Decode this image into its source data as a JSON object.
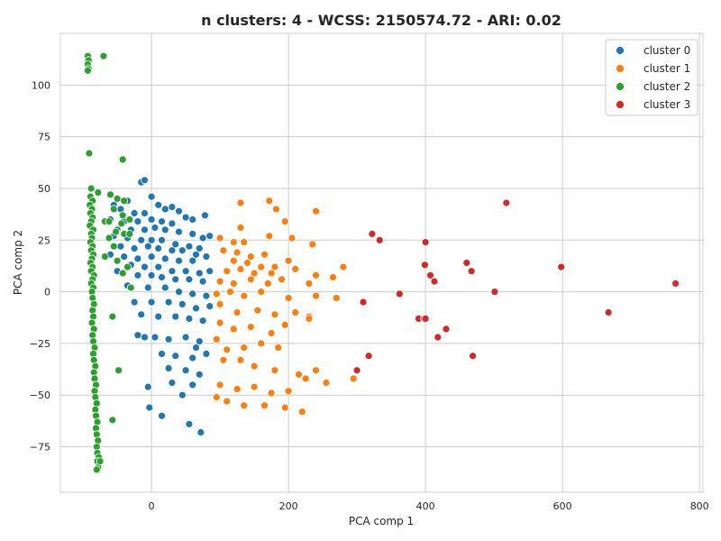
{
  "chart_data": {
    "type": "scatter",
    "title": "n clusters: 4 - WCSS: 2150574.72 - ARI: 0.02",
    "xlabel": "PCA comp 1",
    "ylabel": "PCA comp 2",
    "xlim": [
      -133,
      805
    ],
    "ylim": [
      -97,
      125
    ],
    "xticks": [
      0,
      200,
      400,
      600,
      800
    ],
    "xtick_labels": [
      "0",
      "200",
      "400",
      "600",
      "800"
    ],
    "yticks": [
      -75,
      -50,
      -25,
      0,
      25,
      50,
      75,
      100
    ],
    "ytick_labels": [
      "−75",
      "−50",
      "−25",
      "0",
      "25",
      "50",
      "75",
      "100"
    ],
    "grid": true,
    "legend_position": "top-right",
    "series": [
      {
        "name": "cluster 0",
        "color": "#1f77b4",
        "points": [
          [
            -15,
            53
          ],
          [
            -10,
            54
          ],
          [
            0,
            46
          ],
          [
            -35,
            44
          ],
          [
            -55,
            42
          ],
          [
            -45,
            40
          ],
          [
            -25,
            38
          ],
          [
            -10,
            38
          ],
          [
            10,
            42
          ],
          [
            20,
            40
          ],
          [
            30,
            41
          ],
          [
            40,
            39
          ],
          [
            50,
            36
          ],
          [
            60,
            35
          ],
          [
            78,
            37
          ],
          [
            -60,
            35
          ],
          [
            -40,
            34
          ],
          [
            -20,
            34
          ],
          [
            0,
            35
          ],
          [
            15,
            34
          ],
          [
            30,
            33
          ],
          [
            -50,
            30
          ],
          [
            -30,
            30
          ],
          [
            -10,
            30
          ],
          [
            5,
            31
          ],
          [
            20,
            30
          ],
          [
            40,
            29
          ],
          [
            60,
            28
          ],
          [
            75,
            26
          ],
          [
            85,
            27
          ],
          [
            -55,
            27
          ],
          [
            -35,
            26
          ],
          [
            -15,
            25
          ],
          [
            0,
            25
          ],
          [
            15,
            25
          ],
          [
            35,
            23
          ],
          [
            55,
            22
          ],
          [
            70,
            21
          ],
          [
            -45,
            22
          ],
          [
            -25,
            21
          ],
          [
            -5,
            22
          ],
          [
            10,
            21
          ],
          [
            30,
            20
          ],
          [
            45,
            20
          ],
          [
            65,
            18
          ],
          [
            80,
            17
          ],
          [
            -60,
            18
          ],
          [
            -40,
            17
          ],
          [
            -20,
            16
          ],
          [
            0,
            17
          ],
          [
            20,
            16
          ],
          [
            40,
            15
          ],
          [
            60,
            15
          ],
          [
            -30,
            13
          ],
          [
            -10,
            12
          ],
          [
            10,
            12
          ],
          [
            30,
            10
          ],
          [
            50,
            10
          ],
          [
            70,
            9
          ],
          [
            85,
            10
          ],
          [
            -50,
            10
          ],
          [
            -20,
            8
          ],
          [
            0,
            8
          ],
          [
            15,
            7
          ],
          [
            35,
            6
          ],
          [
            55,
            6
          ],
          [
            75,
            5
          ],
          [
            -35,
            3
          ],
          [
            -5,
            2
          ],
          [
            20,
            2
          ],
          [
            40,
            0
          ],
          [
            60,
            -1
          ],
          [
            80,
            -2
          ],
          [
            -25,
            -5
          ],
          [
            0,
            -5
          ],
          [
            25,
            -5
          ],
          [
            45,
            -6
          ],
          [
            65,
            -8
          ],
          [
            85,
            -7
          ],
          [
            -15,
            -11
          ],
          [
            10,
            -12
          ],
          [
            35,
            -12
          ],
          [
            55,
            -13
          ],
          [
            75,
            -14
          ],
          [
            -20,
            -21
          ],
          [
            5,
            -22
          ],
          [
            25,
            -23
          ],
          [
            50,
            -22
          ],
          [
            70,
            -24
          ],
          [
            15,
            -30
          ],
          [
            35,
            -31
          ],
          [
            60,
            -32
          ],
          [
            80,
            -30
          ],
          [
            25,
            -37
          ],
          [
            50,
            -38
          ],
          [
            70,
            -40
          ],
          [
            -5,
            -46
          ],
          [
            30,
            -44
          ],
          [
            60,
            -45
          ],
          [
            45,
            -50
          ],
          [
            -3,
            -56
          ],
          [
            15,
            -60
          ],
          [
            55,
            -64
          ],
          [
            72,
            -68
          ],
          [
            -10,
            -22
          ],
          [
            65,
            -27
          ]
        ]
      },
      {
        "name": "cluster 1",
        "color": "#ff7f0e",
        "points": [
          [
            130,
            43
          ],
          [
            172,
            44
          ],
          [
            182,
            40
          ],
          [
            240,
            39
          ],
          [
            100,
            26
          ],
          [
            120,
            24
          ],
          [
            130,
            31
          ],
          [
            135,
            24
          ],
          [
            172,
            27
          ],
          [
            195,
            34
          ],
          [
            205,
            26
          ],
          [
            235,
            23
          ],
          [
            105,
            20
          ],
          [
            125,
            19
          ],
          [
            145,
            17
          ],
          [
            165,
            18
          ],
          [
            120,
            15
          ],
          [
            140,
            14
          ],
          [
            160,
            12
          ],
          [
            180,
            12
          ],
          [
            200,
            15
          ],
          [
            110,
            10
          ],
          [
            130,
            11
          ],
          [
            150,
            9
          ],
          [
            175,
            9
          ],
          [
            210,
            11
          ],
          [
            240,
            8
          ],
          [
            280,
            12
          ],
          [
            100,
            5
          ],
          [
            120,
            4
          ],
          [
            145,
            6
          ],
          [
            170,
            4
          ],
          [
            190,
            6
          ],
          [
            230,
            4
          ],
          [
            265,
            7
          ],
          [
            95,
            -1
          ],
          [
            115,
            0
          ],
          [
            135,
            -2
          ],
          [
            160,
            0
          ],
          [
            200,
            -3
          ],
          [
            240,
            -2
          ],
          [
            270,
            -3
          ],
          [
            100,
            -6
          ],
          [
            125,
            -10
          ],
          [
            155,
            -9
          ],
          [
            180,
            -11
          ],
          [
            210,
            -10
          ],
          [
            230,
            -12
          ],
          [
            100,
            -15
          ],
          [
            120,
            -18
          ],
          [
            145,
            -17
          ],
          [
            175,
            -20
          ],
          [
            195,
            -16
          ],
          [
            230,
            -13
          ],
          [
            95,
            -23
          ],
          [
            110,
            -28
          ],
          [
            135,
            -27
          ],
          [
            160,
            -25
          ],
          [
            185,
            -27
          ],
          [
            105,
            -33
          ],
          [
            130,
            -33
          ],
          [
            150,
            -36
          ],
          [
            180,
            -38
          ],
          [
            215,
            -40
          ],
          [
            240,
            -38
          ],
          [
            100,
            -45
          ],
          [
            125,
            -47
          ],
          [
            150,
            -46
          ],
          [
            175,
            -49
          ],
          [
            200,
            -48
          ],
          [
            225,
            -42
          ],
          [
            95,
            -51
          ],
          [
            110,
            -53
          ],
          [
            135,
            -55
          ],
          [
            165,
            -55
          ],
          [
            195,
            -56
          ],
          [
            220,
            -58
          ],
          [
            255,
            -44
          ],
          [
            295,
            -42
          ]
        ]
      },
      {
        "name": "cluster 2",
        "color": "#2ca02c",
        "points": [
          [
            -93,
            114
          ],
          [
            -92,
            112
          ],
          [
            -93,
            110
          ],
          [
            -92,
            108
          ],
          [
            -93,
            107
          ],
          [
            -70,
            114
          ],
          [
            -91,
            67
          ],
          [
            -78,
            48
          ],
          [
            -88,
            50
          ],
          [
            -89,
            46
          ],
          [
            -86,
            44
          ],
          [
            -90,
            42
          ],
          [
            -87,
            40
          ],
          [
            -89,
            38
          ],
          [
            -86,
            36
          ],
          [
            -88,
            34
          ],
          [
            -90,
            32
          ],
          [
            -85,
            30
          ],
          [
            -88,
            28
          ],
          [
            -87,
            26
          ],
          [
            -89,
            24
          ],
          [
            -86,
            22
          ],
          [
            -88,
            20
          ],
          [
            -85,
            18
          ],
          [
            -87,
            16
          ],
          [
            -89,
            14
          ],
          [
            -86,
            12
          ],
          [
            -88,
            10
          ],
          [
            -84,
            8
          ],
          [
            -86,
            6
          ],
          [
            -88,
            4
          ],
          [
            -85,
            2
          ],
          [
            -87,
            0
          ],
          [
            -86,
            -3
          ],
          [
            -84,
            -6
          ],
          [
            -86,
            -9
          ],
          [
            -85,
            -12
          ],
          [
            -87,
            -15
          ],
          [
            -84,
            -18
          ],
          [
            -86,
            -21
          ],
          [
            -85,
            -24
          ],
          [
            -83,
            -27
          ],
          [
            -85,
            -30
          ],
          [
            -84,
            -33
          ],
          [
            -82,
            -36
          ],
          [
            -84,
            -39
          ],
          [
            -83,
            -42
          ],
          [
            -81,
            -45
          ],
          [
            -83,
            -48
          ],
          [
            -82,
            -51
          ],
          [
            -80,
            -54
          ],
          [
            -82,
            -57
          ],
          [
            -81,
            -60
          ],
          [
            -79,
            -63
          ],
          [
            -81,
            -66
          ],
          [
            -80,
            -69
          ],
          [
            -78,
            -72
          ],
          [
            -80,
            -75
          ],
          [
            -79,
            -78
          ],
          [
            -77,
            -80
          ],
          [
            -79,
            -82
          ],
          [
            -78,
            -85
          ],
          [
            -80,
            -86
          ],
          [
            -75,
            -82
          ],
          [
            -60,
            47
          ],
          [
            -50,
            45
          ],
          [
            -40,
            44
          ],
          [
            -55,
            40
          ],
          [
            -42,
            37
          ],
          [
            -32,
            35
          ],
          [
            -68,
            34
          ],
          [
            -62,
            34
          ],
          [
            -44,
            33
          ],
          [
            -52,
            29
          ],
          [
            -40,
            28
          ],
          [
            -32,
            28
          ],
          [
            -62,
            26
          ],
          [
            -55,
            22
          ],
          [
            -68,
            17
          ],
          [
            -50,
            15
          ],
          [
            -35,
            12
          ],
          [
            -42,
            9
          ],
          [
            -30,
            2
          ],
          [
            -57,
            -12
          ],
          [
            -48,
            -38
          ],
          [
            -57,
            -62
          ],
          [
            -42,
            64
          ]
        ]
      },
      {
        "name": "cluster 3",
        "color": "#d62728",
        "points": [
          [
            518,
            43
          ],
          [
            322,
            28
          ],
          [
            333,
            25
          ],
          [
            400,
            24
          ],
          [
            598,
            12
          ],
          [
            399,
            13
          ],
          [
            407,
            8
          ],
          [
            413,
            5
          ],
          [
            460,
            14
          ],
          [
            467,
            10
          ],
          [
            765,
            4
          ],
          [
            362,
            -1
          ],
          [
            501,
            0
          ],
          [
            309,
            -5
          ],
          [
            667,
            -10
          ],
          [
            390,
            -13
          ],
          [
            398,
            -13
          ],
          [
            400,
            -13
          ],
          [
            430,
            -18
          ],
          [
            418,
            -22
          ],
          [
            317,
            -31
          ],
          [
            469,
            -31
          ],
          [
            300,
            -38
          ]
        ]
      }
    ]
  }
}
